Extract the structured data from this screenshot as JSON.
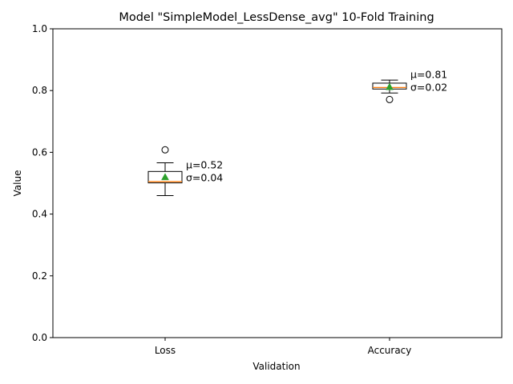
{
  "chart_data": {
    "type": "box",
    "title": "Model \"SimpleModel_LessDense_avg\" 10-Fold Training",
    "xlabel": "Validation",
    "ylabel": "Value",
    "ylim": [
      0,
      1.0
    ],
    "yticks": [
      "0.0",
      "0.2",
      "0.4",
      "0.6",
      "0.8",
      "1.0"
    ],
    "grid": false,
    "categories": [
      "Loss",
      "Accuracy"
    ],
    "boxes": [
      {
        "category": "Loss",
        "whisker_low": 0.46,
        "q1": 0.501,
        "median": 0.505,
        "q3": 0.538,
        "whisker_high": 0.566,
        "mean": 0.52,
        "outliers": [
          0.608
        ],
        "annotation_mean": "μ=0.52",
        "annotation_std": "σ=0.04"
      },
      {
        "category": "Accuracy",
        "whisker_low": 0.792,
        "q1": 0.805,
        "median": 0.81,
        "q3": 0.824,
        "whisker_high": 0.834,
        "mean": 0.812,
        "outliers": [
          0.771
        ],
        "annotation_mean": "μ=0.81",
        "annotation_std": "σ=0.02"
      }
    ],
    "colors": {
      "box_edge": "#000000",
      "median": "#ff7f0e",
      "mean_marker": "#2ca02c",
      "box_fill": "#ffffff"
    }
  }
}
